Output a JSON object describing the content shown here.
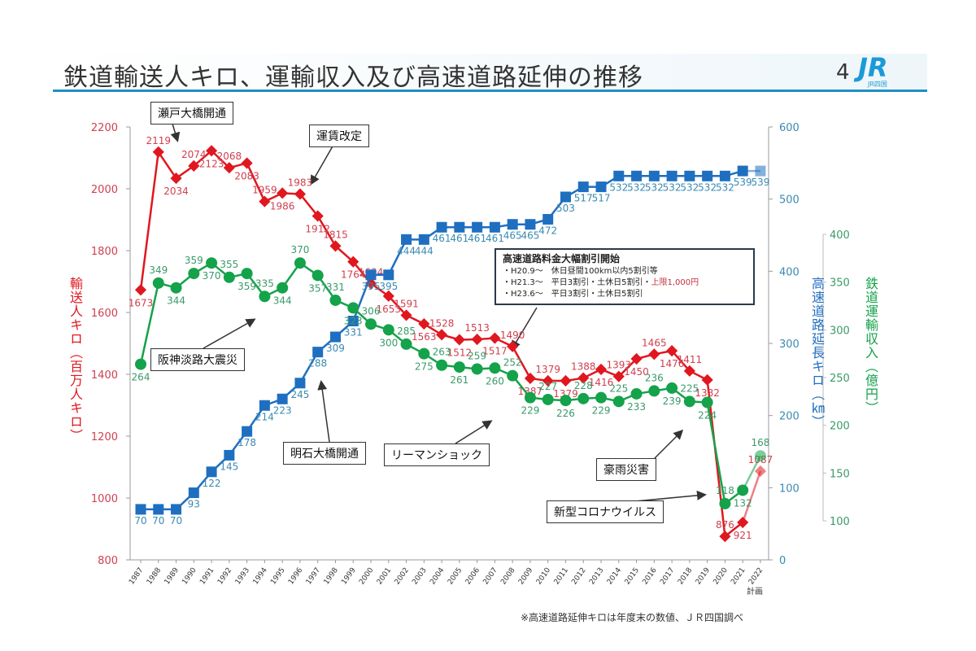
{
  "header": {
    "title": "鉄道輸送人キロ、運輸収入及び高速道路延伸の推移",
    "page_number": "4",
    "logo_text": "JR",
    "logo_subtext": "JR四国"
  },
  "footnote": "※高速道路延伸キロは年度末の数値、ＪＲ四国調べ",
  "plan_label": "計画",
  "annotations": {
    "seto": "瀬戸大橋開通",
    "fare": "運賃改定",
    "hanshin": "阪神淡路大震災",
    "akashi": "明石大橋開通",
    "lehman": "リーマンショック",
    "rain": "豪雨災害",
    "corona": "新型コロナウイルス",
    "highway_title": "高速道路料金大幅割引開始",
    "highway_lines": [
      "・H20.9～　休日昼間100km以内5割引等",
      "・H21.3～　平日3割引・土休日5割引・",
      "・H23.6～　平日3割引・土休日5割引"
    ],
    "highway_red": "上限1,000円"
  },
  "colors": {
    "red": "#e0171f",
    "blue": "#1f6fc0",
    "green": "#14a24a",
    "red_label": "#d04050",
    "blue_label": "#3a8ab0",
    "green_label": "#3a9a6a"
  },
  "chart_data": {
    "type": "line",
    "categories": [
      "1987",
      "1988",
      "1989",
      "1990",
      "1991",
      "1992",
      "1993",
      "1994",
      "1995",
      "1996",
      "1997",
      "1998",
      "1999",
      "2000",
      "2001",
      "2002",
      "2003",
      "2004",
      "2005",
      "2006",
      "2007",
      "2008",
      "2009",
      "2010",
      "2011",
      "2012",
      "2013",
      "2014",
      "2015",
      "2016",
      "2017",
      "2018",
      "2019",
      "2020",
      "2021",
      "2022"
    ],
    "axes": {
      "left": {
        "label": "輸送人キロ（百万人キロ）",
        "range": [
          800,
          2200
        ],
        "ticks": [
          800,
          1000,
          1200,
          1400,
          1600,
          1800,
          2000,
          2200
        ]
      },
      "right_blue": {
        "label": "高速道路延長キロ（㎞）",
        "range": [
          0,
          600
        ],
        "ticks": [
          0,
          100,
          200,
          300,
          400,
          500,
          600
        ]
      },
      "right_green": {
        "label": "鉄道運輸収入（億円）",
        "range": [
          100,
          400
        ],
        "ticks": [
          100,
          150,
          200,
          250,
          300,
          350,
          400
        ]
      }
    },
    "series": [
      {
        "name": "輸送人キロ",
        "axis": "left",
        "values": [
          1673,
          2119,
          2034,
          2074,
          2123,
          2068,
          2083,
          1959,
          1986,
          1983,
          1912,
          1815,
          1764,
          1694,
          1653,
          1591,
          1563,
          1528,
          1512,
          1513,
          1517,
          1490,
          1387,
          1379,
          1379,
          1388,
          1416,
          1393,
          1450,
          1465,
          1476,
          1411,
          1382,
          876,
          921,
          1087
        ]
      },
      {
        "name": "高速道路延長キロ",
        "axis": "right_blue",
        "values": [
          70,
          70,
          70,
          93,
          122,
          145,
          178,
          214,
          223,
          245,
          288,
          309,
          331,
          395,
          395,
          444,
          444,
          461,
          461,
          461,
          461,
          465,
          465,
          472,
          503,
          517,
          517,
          532,
          532,
          532,
          532,
          532,
          532,
          532,
          539,
          539
        ]
      },
      {
        "name": "鉄道運輸収入",
        "axis": "right_green",
        "values": [
          264,
          349,
          344,
          359,
          370,
          355,
          359,
          335,
          344,
          370,
          357,
          331,
          323,
          306,
          300,
          285,
          275,
          263,
          261,
          259,
          260,
          252,
          229,
          227,
          226,
          228,
          229,
          225,
          233,
          236,
          239,
          225,
          224,
          118,
          132,
          168
        ]
      }
    ]
  }
}
